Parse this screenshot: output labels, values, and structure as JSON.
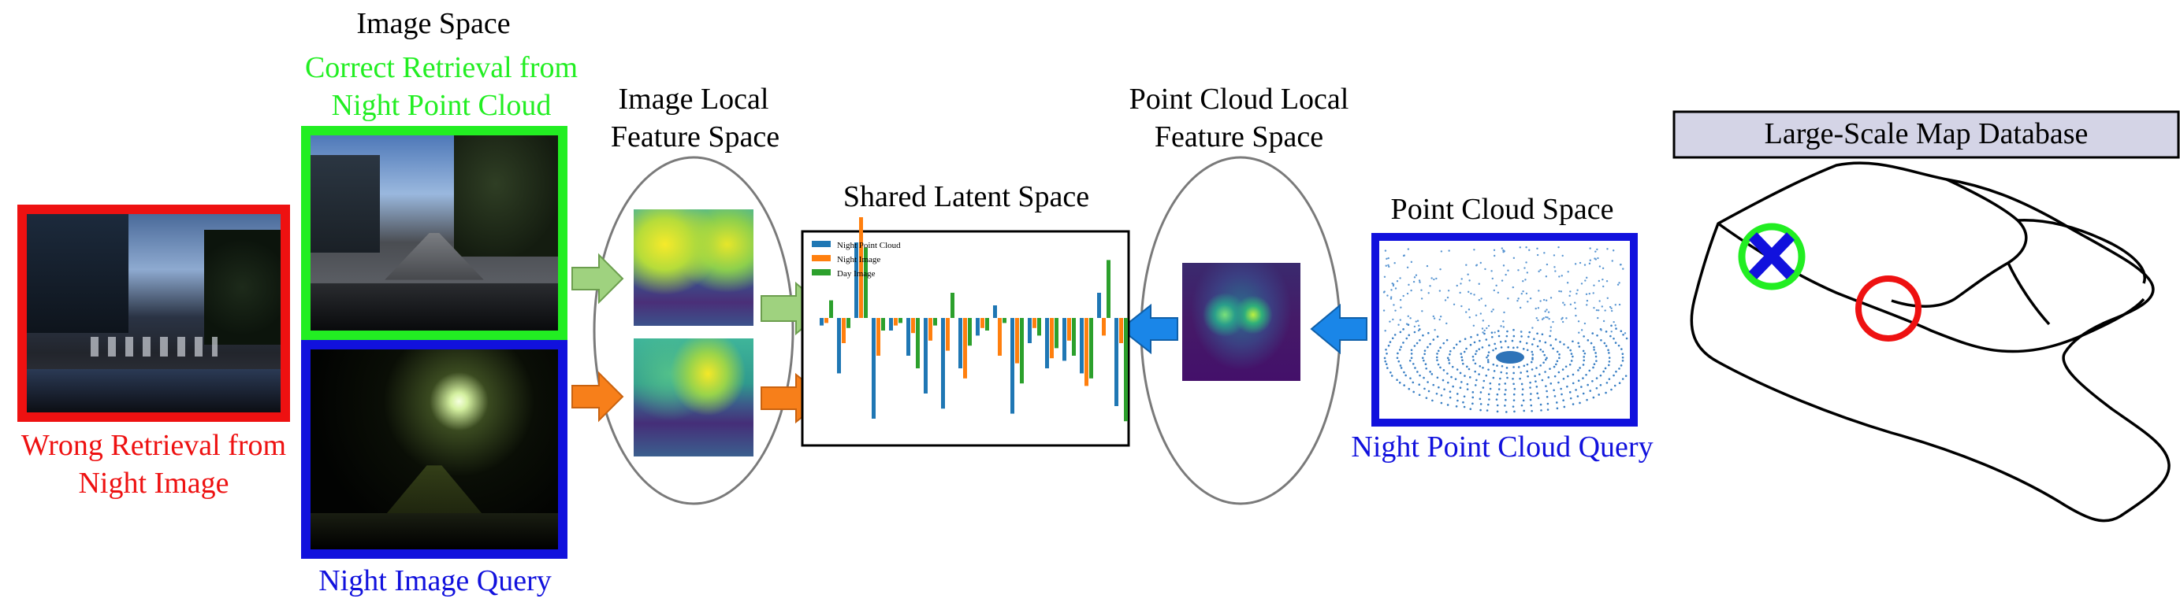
{
  "labels": {
    "image_space": "Image Space",
    "correct_retrieval_line1": "Correct Retrieval from",
    "correct_retrieval_line2": "Night Point Cloud",
    "wrong_retrieval_line1": "Wrong Retrieval from",
    "wrong_retrieval_line2": "Night Image",
    "night_image_query": "Night Image Query",
    "image_local_line1": "Image Local",
    "image_local_line2": "Feature Space",
    "shared_latent": "Shared Latent Space",
    "pc_local_line1": "Point Cloud Local",
    "pc_local_line2": "Feature Space",
    "point_cloud_space": "Point Cloud Space",
    "night_pc_query": "Night Point Cloud Query",
    "map_database": "Large-Scale Map Database"
  },
  "legend": [
    "Night Point Cloud",
    "Night Image",
    "Day Image"
  ],
  "colors": {
    "green_frame": "#22ee22",
    "red_frame": "#ee1111",
    "blue_frame": "#1111dd",
    "series_blue": "#1f77b4",
    "series_orange": "#ff7f0e",
    "series_green": "#2ca02c",
    "arrow_green": "#9fd27f",
    "arrow_orange": "#f77f1a",
    "arrow_blue": "#1a86e8"
  },
  "icons": [
    "cross-icon",
    "correct-location-circle-icon",
    "wrong-location-circle-icon"
  ]
}
